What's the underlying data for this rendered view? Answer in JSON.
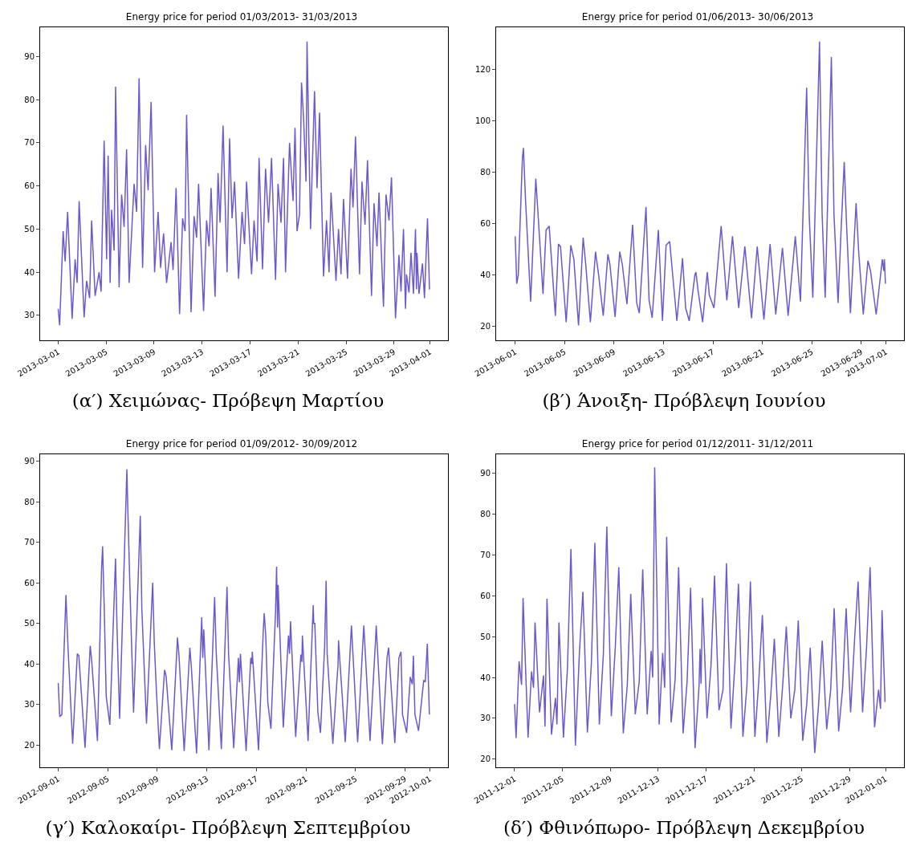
{
  "chart_data": [
    {
      "type": "line",
      "title": "Energy price for period 01/03/2013- 31/03/2013",
      "color": "#6a5acd",
      "x": [
        "2013-03-01T00:00",
        "2013-03-01T03:00",
        "2013-03-01T10:00",
        "2013-03-01T14:00",
        "2013-03-01T19:00",
        "2013-03-02T04:00",
        "2013-03-02T10:00",
        "2013-03-02T14:00",
        "2013-03-02T18:00",
        "2013-03-03T04:00",
        "2013-03-03T09:00",
        "2013-03-03T15:00",
        "2013-03-03T19:00",
        "2013-03-04T02:00",
        "2013-03-04T10:00",
        "2013-03-04T14:00",
        "2013-03-04T20:00",
        "2013-03-05T01:00",
        "2013-03-05T04:00",
        "2013-03-05T08:00",
        "2013-03-05T11:00",
        "2013-03-05T16:00",
        "2013-03-05T19:00",
        "2013-03-06T02:00",
        "2013-03-06T07:00",
        "2013-03-06T12:00",
        "2013-03-06T17:00",
        "2013-03-06T22:00",
        "2013-03-07T08:00",
        "2013-03-07T13:00",
        "2013-03-07T18:00",
        "2013-03-08T01:00",
        "2013-03-08T07:00",
        "2013-03-08T12:00",
        "2013-03-08T18:00",
        "2013-03-09T01:00",
        "2013-03-09T08:00",
        "2013-03-09T13:00",
        "2013-03-09T19:00",
        "2013-03-10T01:00",
        "2013-03-10T10:00",
        "2013-03-10T14:00",
        "2013-03-10T20:00",
        "2013-03-11T03:00",
        "2013-03-11T09:00",
        "2013-03-11T14:00",
        "2013-03-11T17:00",
        "2013-03-12T02:00",
        "2013-03-12T08:00",
        "2013-03-12T13:00",
        "2013-03-12T17:00",
        "2013-03-13T03:00",
        "2013-03-13T09:00",
        "2013-03-13T14:00",
        "2013-03-13T18:00",
        "2013-03-14T02:00",
        "2013-03-14T08:00",
        "2013-03-14T12:00",
        "2013-03-14T18:00",
        "2013-03-15T02:00",
        "2013-03-15T07:00",
        "2013-03-15T12:00",
        "2013-03-15T17:00",
        "2013-03-16T01:00",
        "2013-03-16T08:00",
        "2013-03-16T13:00",
        "2013-03-16T17:00",
        "2013-03-17T03:00",
        "2013-03-17T08:00",
        "2013-03-17T14:00",
        "2013-03-17T18:00",
        "2013-03-18T01:00",
        "2013-03-18T07:00",
        "2013-03-18T13:00",
        "2013-03-18T19:00",
        "2013-03-19T03:00",
        "2013-03-19T08:00",
        "2013-03-19T14:00",
        "2013-03-19T19:00",
        "2013-03-19T23:00",
        "2013-03-20T07:00",
        "2013-03-20T14:00",
        "2013-03-20T18:00",
        "2013-03-20T22:00",
        "2013-03-21T03:00",
        "2013-03-21T07:00",
        "2013-03-21T11:00",
        "2013-03-21T16:00",
        "2013-03-21T18:00",
        "2013-03-22T01:00",
        "2013-03-22T09:00",
        "2013-03-22T14:00",
        "2013-03-22T19:00",
        "2013-03-23T03:00",
        "2013-03-23T09:00",
        "2013-03-23T14:00",
        "2013-03-23T18:00",
        "2013-03-24T04:00",
        "2013-03-24T09:00",
        "2013-03-24T14:00",
        "2013-03-24T19:00",
        "2013-03-25T03:00",
        "2013-03-25T10:00",
        "2013-03-25T14:00",
        "2013-03-25T19:00",
        "2013-03-26T03:00",
        "2013-03-26T08:00",
        "2013-03-26T14:00",
        "2013-03-26T19:00",
        "2013-03-27T03:00",
        "2013-03-27T08:00",
        "2013-03-27T14:00",
        "2013-03-27T18:00",
        "2013-03-28T03:00",
        "2013-03-28T08:00",
        "2013-03-28T14:00",
        "2013-03-28T19:00",
        "2013-03-29T03:00",
        "2013-03-29T10:00",
        "2013-03-29T14:00",
        "2013-03-29T19:00",
        "2013-03-29T23:00",
        "2013-03-30T01:00",
        "2013-03-30T06:00",
        "2013-03-30T10:00",
        "2013-03-30T15:00",
        "2013-03-30T19:00",
        "2013-03-30T21:00",
        "2013-03-30T22:00",
        "2013-03-31T02:00",
        "2013-03-31T09:00",
        "2013-03-31T13:00",
        "2013-03-31T19:00",
        "2013-03-31T23:00"
      ],
      "values": [
        31.5,
        27.7,
        49.5,
        42.5,
        54,
        29.2,
        43,
        37.5,
        56.5,
        29.5,
        38,
        34,
        52,
        34.5,
        40,
        35.5,
        70.5,
        43,
        67,
        37.5,
        54.5,
        45,
        83,
        36.5,
        58,
        50.5,
        68.5,
        37.5,
        60.5,
        54,
        85,
        41,
        69.5,
        59,
        79.5,
        40,
        54,
        41,
        49,
        37.5,
        47,
        40.5,
        59.5,
        30.3,
        52.5,
        49.5,
        76.5,
        30.7,
        53,
        48,
        60.5,
        31,
        52,
        46,
        59.5,
        34.3,
        63,
        51.5,
        74,
        40,
        71,
        52.5,
        61,
        38.5,
        54,
        46.5,
        61,
        39.5,
        52,
        42.5,
        66.5,
        40.7,
        64,
        51.5,
        66.5,
        38.2,
        60.5,
        51.5,
        66.5,
        40,
        70,
        56.5,
        73.5,
        49.5,
        53.5,
        84,
        76,
        61,
        93.5,
        50,
        82,
        59.5,
        77,
        39,
        52,
        40,
        58.5,
        38,
        50,
        39.5,
        57,
        38.5,
        64,
        55,
        71.5,
        39.5,
        61,
        51,
        66,
        34.5,
        56,
        46,
        58.5,
        32,
        58,
        52,
        62,
        29.3,
        44,
        35.5,
        50,
        31.5,
        39.5,
        35.3,
        44.5,
        35,
        50,
        36,
        44.5,
        35,
        42,
        34,
        52.5,
        36
      ],
      "xlim": [
        "2013-02-27T12:00",
        "2013-04-02T12:00"
      ],
      "xticks": [
        "2013-03-01",
        "2013-03-05",
        "2013-03-09",
        "2013-03-13",
        "2013-03-17",
        "2013-03-21",
        "2013-03-25",
        "2013-03-29",
        "2013-04-01"
      ],
      "ylim": [
        24.2,
        96.8
      ],
      "yticks": [
        30,
        40,
        50,
        60,
        70,
        80,
        90
      ],
      "annotations": [
        "(α′) Χειμώνας- Πρόβεψη Μαρτίου"
      ]
    },
    {
      "type": "line",
      "title": "Energy price for period 01/06/2013- 30/06/2013",
      "color": "#6a5acd",
      "x": [
        "2013-06-01T00:00",
        "2013-06-01T03:00",
        "2013-06-01T06:00",
        "2013-06-01T14:00",
        "2013-06-01T16:00",
        "2013-06-01T20:00",
        "2013-06-02T06:00",
        "2013-06-02T16:00",
        "2013-06-02T20:00",
        "2013-06-03T06:00",
        "2013-06-03T12:00",
        "2013-06-03T18:00",
        "2013-06-04T06:00",
        "2013-06-04T12:00",
        "2013-06-04T16:00",
        "2013-06-05T03:00",
        "2013-06-05T12:00",
        "2013-06-05T18:00",
        "2013-06-06T03:00",
        "2013-06-06T12:00",
        "2013-06-06T17:00",
        "2013-06-07T02:00",
        "2013-06-07T12:00",
        "2013-06-07T18:00",
        "2013-06-08T03:00",
        "2013-06-08T12:00",
        "2013-06-08T16:00",
        "2013-06-09T02:00",
        "2013-06-09T11:00",
        "2013-06-09T16:00",
        "2013-06-10T01:00",
        "2013-06-10T12:00",
        "2013-06-10T20:00",
        "2013-06-11T01:00",
        "2013-06-11T14:00",
        "2013-06-11T20:00",
        "2013-06-12T02:00",
        "2013-06-12T14:00",
        "2013-06-12T22:00",
        "2013-06-13T05:00",
        "2013-06-13T12:00",
        "2013-06-13T16:00",
        "2013-06-14T02:00",
        "2013-06-14T13:00",
        "2013-06-14T19:00",
        "2013-06-15T02:00",
        "2013-06-15T13:00",
        "2013-06-15T15:00",
        "2013-06-15T19:00",
        "2013-06-16T04:00",
        "2013-06-16T13:00",
        "2013-06-16T17:00",
        "2013-06-17T02:00",
        "2013-06-17T16:00",
        "2013-06-18T03:00",
        "2013-06-18T14:00",
        "2013-06-19T02:00",
        "2013-06-19T14:00",
        "2013-06-20T03:00",
        "2013-06-20T14:00",
        "2013-06-21T03:00",
        "2013-06-21T15:00",
        "2013-06-22T02:00",
        "2013-06-22T15:00",
        "2013-06-23T02:00",
        "2013-06-23T16:00",
        "2013-06-24T02:00",
        "2013-06-24T14:00",
        "2013-06-24T19:00",
        "2013-06-25T02:00",
        "2013-06-25T15:00",
        "2013-06-25T20:00",
        "2013-06-26T02:00",
        "2013-06-26T14:00",
        "2013-06-26T19:00",
        "2013-06-27T03:00",
        "2013-06-27T09:00",
        "2013-06-27T15:00",
        "2013-06-27T19:00",
        "2013-06-28T03:00",
        "2013-06-28T14:00",
        "2013-06-28T19:00",
        "2013-06-29T04:00",
        "2013-06-29T13:00",
        "2013-06-29T18:00",
        "2013-06-30T05:00",
        "2013-06-30T17:00",
        "2013-06-30T20:00",
        "2013-06-30T21:00",
        "2013-06-30T23:00"
      ],
      "values": [
        55,
        36.5,
        40,
        85.5,
        89.5,
        69.5,
        29.5,
        77.5,
        65,
        32.5,
        57.5,
        59,
        24,
        52,
        51,
        21.5,
        51.5,
        46,
        20.2,
        54.5,
        44,
        21.5,
        49,
        40,
        24,
        48,
        44,
        23.5,
        49,
        44,
        28.5,
        59.5,
        29,
        25,
        66.5,
        30,
        23.2,
        57.5,
        22,
        51.5,
        53,
        44,
        22,
        46.5,
        27,
        22,
        40,
        41,
        34,
        21.5,
        41,
        32,
        27,
        59,
        30,
        55,
        27,
        51,
        23,
        51,
        22.5,
        52,
        24.5,
        50.5,
        24,
        55,
        29.5,
        113,
        63,
        31,
        131,
        64,
        31,
        125,
        64,
        29,
        58,
        84,
        62,
        25,
        68,
        49,
        24.5,
        45.5,
        41.5,
        24.5,
        46,
        41.5,
        46,
        36.5
      ],
      "xlim": [
        "2013-05-30T11:00",
        "2013-07-02T11:00"
      ],
      "xticks": [
        "2013-06-01",
        "2013-06-05",
        "2013-06-09",
        "2013-06-13",
        "2013-06-17",
        "2013-06-21",
        "2013-06-25",
        "2013-06-29",
        "2013-07-01"
      ],
      "ylim": [
        14.4,
        136.6
      ],
      "yticks": [
        20,
        40,
        60,
        80,
        100,
        120
      ],
      "annotations": [
        "(β′) Άνοιξη- Πρόβλεψη Ιουνίου"
      ]
    },
    {
      "type": "line",
      "title": "Energy price for period 01/09/2012- 30/09/2012",
      "color": "#6a5acd",
      "x": [
        "2012-09-01T00:00",
        "2012-09-01T03:00",
        "2012-09-01T07:00",
        "2012-09-01T15:00",
        "2012-09-01T19:00",
        "2012-09-02T04:00",
        "2012-09-02T13:00",
        "2012-09-02T16:00",
        "2012-09-03T04:00",
        "2012-09-03T14:00",
        "2012-09-03T17:00",
        "2012-09-04T04:00",
        "2012-09-04T12:00",
        "2012-09-04T14:00",
        "2012-09-04T17:00",
        "2012-09-04T21:00",
        "2012-09-05T04:00",
        "2012-09-05T15:00",
        "2012-09-05T18:00",
        "2012-09-05T23:00",
        "2012-09-06T13:00",
        "2012-09-06T15:00",
        "2012-09-06T19:00",
        "2012-09-07T02:00",
        "2012-09-07T15:00",
        "2012-09-07T18:00",
        "2012-09-08T03:00",
        "2012-09-08T15:00",
        "2012-09-08T18:00",
        "2012-09-08T22:00",
        "2012-09-09T04:00",
        "2012-09-09T14:00",
        "2012-09-09T17:00",
        "2012-09-10T04:00",
        "2012-09-10T15:00",
        "2012-09-10T18:00",
        "2012-09-11T04:00",
        "2012-09-11T15:00",
        "2012-09-11T18:00",
        "2012-09-12T04:00",
        "2012-09-12T14:00",
        "2012-09-12T16:00",
        "2012-09-12T18:00",
        "2012-09-13T04:00",
        "2012-09-13T15:00",
        "2012-09-13T18:00",
        "2012-09-14T04:00",
        "2012-09-14T15:00",
        "2012-09-14T18:00",
        "2012-09-15T04:00",
        "2012-09-15T13:00",
        "2012-09-15T15:00",
        "2012-09-15T17:00",
        "2012-09-16T04:00",
        "2012-09-16T13:00",
        "2012-09-16T15:00",
        "2012-09-16T16:00",
        "2012-09-17T04:00",
        "2012-09-17T13:00",
        "2012-09-17T15:00",
        "2012-09-17T18:00",
        "2012-09-17T22:00",
        "2012-09-18T04:00",
        "2012-09-18T13:00",
        "2012-09-18T15:00",
        "2012-09-18T17:00",
        "2012-09-18T18:00",
        "2012-09-19T04:00",
        "2012-09-19T14:00",
        "2012-09-19T16:00",
        "2012-09-19T18:00",
        "2012-09-20T04:00",
        "2012-09-20T14:00",
        "2012-09-20T16:00",
        "2012-09-20T17:00",
        "2012-09-21T04:00",
        "2012-09-21T14:00",
        "2012-09-21T15:00",
        "2012-09-21T17:00",
        "2012-09-21T23:00",
        "2012-09-22T04:00",
        "2012-09-22T12:00",
        "2012-09-22T15:00",
        "2012-09-22T17:00",
        "2012-09-23T04:00",
        "2012-09-23T13:00",
        "2012-09-23T14:00",
        "2012-09-23T15:00",
        "2012-09-24T04:00",
        "2012-09-24T13:00",
        "2012-09-24T16:00",
        "2012-09-25T04:00",
        "2012-09-25T13:00",
        "2012-09-25T16:00",
        "2012-09-26T04:00",
        "2012-09-26T13:00",
        "2012-09-26T15:00",
        "2012-09-26T16:00",
        "2012-09-27T04:00",
        "2012-09-27T13:00",
        "2012-09-27T16:00",
        "2012-09-28T04:00",
        "2012-09-28T12:00",
        "2012-09-28T16:00",
        "2012-09-28T19:00",
        "2012-09-29T03:00",
        "2012-09-29T10:00",
        "2012-09-29T14:00",
        "2012-09-29T16:00",
        "2012-09-29T19:00",
        "2012-09-30T02:00",
        "2012-09-30T12:00",
        "2012-09-30T15:00",
        "2012-09-30T19:00",
        "2012-09-30T23:00"
      ],
      "values": [
        35.3,
        27,
        27.5,
        57,
        44,
        20.3,
        42.5,
        42,
        19.3,
        44.5,
        40.5,
        21,
        63.5,
        69,
        54.5,
        32,
        25,
        66,
        48.5,
        26.5,
        88,
        77.5,
        58.5,
        28,
        76.5,
        53.5,
        25.3,
        60,
        45.5,
        34,
        19,
        38.5,
        37,
        18.7,
        46.5,
        42,
        18.5,
        44,
        39,
        17.9,
        51.5,
        41.5,
        48.5,
        18.7,
        56.5,
        43,
        19,
        59,
        42.5,
        19.2,
        41.5,
        35.5,
        42.5,
        18.5,
        41.5,
        40,
        43,
        18.7,
        47.5,
        52.5,
        47,
        30.5,
        24,
        53,
        64,
        49,
        59.5,
        24.3,
        47,
        42.5,
        50.5,
        22,
        42.3,
        40.5,
        47,
        21,
        54.5,
        50,
        50,
        28,
        23,
        44,
        60.5,
        42.5,
        20.3,
        38,
        39.5,
        45.8,
        20.7,
        42,
        49.5,
        20.7,
        42.5,
        49.5,
        21,
        42,
        46.5,
        49.5,
        20.2,
        41.5,
        44,
        20.5,
        41.5,
        43,
        27.5,
        23,
        36.8,
        35,
        42,
        27.5,
        23.5,
        36,
        35.5,
        45,
        27.5
      ],
      "xlim": [
        "2012-08-30T13:00",
        "2012-10-02T11:00"
      ],
      "xticks": [
        "2012-09-01",
        "2012-09-05",
        "2012-09-09",
        "2012-09-13",
        "2012-09-17",
        "2012-09-21",
        "2012-09-25",
        "2012-09-29",
        "2012-10-01"
      ],
      "ylim": [
        14.5,
        91.7
      ],
      "yticks": [
        20,
        30,
        40,
        50,
        60,
        70,
        80,
        90
      ],
      "annotations": [
        "(γ′) Καλοκαίρι- Πρόβλεψη Σεπτεμβρίου"
      ]
    },
    {
      "type": "line",
      "title": "Energy price for period 01/12/2011- 31/12/2011",
      "color": "#6a5acd",
      "x": [
        "2011-12-01T00:00",
        "2011-12-01T03:00",
        "2011-12-01T09:00",
        "2011-12-01T14:00",
        "2011-12-01T17:00",
        "2011-12-02T03:00",
        "2011-12-02T10:00",
        "2011-12-02T14:00",
        "2011-12-02T17:00",
        "2011-12-03T02:00",
        "2011-12-03T10:00",
        "2011-12-03T13:00",
        "2011-12-03T17:00",
        "2011-12-04T02:00",
        "2011-12-04T10:00",
        "2011-12-04T13:00",
        "2011-12-04T17:00",
        "2011-12-05T02:00",
        "2011-12-05T10:00",
        "2011-12-05T17:00",
        "2011-12-06T02:00",
        "2011-12-06T10:00",
        "2011-12-06T17:00",
        "2011-12-07T02:00",
        "2011-12-07T10:00",
        "2011-12-07T17:00",
        "2011-12-08T02:00",
        "2011-12-08T10:00",
        "2011-12-08T17:00",
        "2011-12-09T02:00",
        "2011-12-09T10:00",
        "2011-12-09T17:00",
        "2011-12-10T02:00",
        "2011-12-10T10:00",
        "2011-12-10T17:00",
        "2011-12-11T02:00",
        "2011-12-11T10:00",
        "2011-12-11T17:00",
        "2011-12-12T02:00",
        "2011-12-12T10:00",
        "2011-12-12T13:00",
        "2011-12-12T17:00",
        "2011-12-13T02:00",
        "2011-12-13T09:00",
        "2011-12-13T13:00",
        "2011-12-13T17:00",
        "2011-12-14T02:00",
        "2011-12-14T10:00",
        "2011-12-14T17:00",
        "2011-12-15T02:00",
        "2011-12-15T10:00",
        "2011-12-15T17:00",
        "2011-12-16T02:00",
        "2011-12-16T10:00",
        "2011-12-16T12:00",
        "2011-12-16T14:00",
        "2011-12-16T17:00",
        "2011-12-17T02:00",
        "2011-12-17T10:00",
        "2011-12-17T17:00",
        "2011-12-18T02:00",
        "2011-12-18T10:00",
        "2011-12-18T17:00",
        "2011-12-19T02:00",
        "2011-12-19T10:00",
        "2011-12-19T17:00",
        "2011-12-20T02:00",
        "2011-12-20T10:00",
        "2011-12-20T17:00",
        "2011-12-21T02:00",
        "2011-12-21T10:00",
        "2011-12-21T17:00",
        "2011-12-22T02:00",
        "2011-12-22T10:00",
        "2011-12-22T17:00",
        "2011-12-23T02:00",
        "2011-12-23T10:00",
        "2011-12-23T17:00",
        "2011-12-24T02:00",
        "2011-12-24T10:00",
        "2011-12-24T17:00",
        "2011-12-25T02:00",
        "2011-12-25T10:00",
        "2011-12-25T17:00",
        "2011-12-26T02:00",
        "2011-12-26T10:00",
        "2011-12-26T17:00",
        "2011-12-27T02:00",
        "2011-12-27T10:00",
        "2011-12-27T17:00",
        "2011-12-28T02:00",
        "2011-12-28T10:00",
        "2011-12-28T17:00",
        "2011-12-29T02:00",
        "2011-12-29T10:00",
        "2011-12-29T17:00",
        "2011-12-30T02:00",
        "2011-12-30T10:00",
        "2011-12-30T17:00",
        "2011-12-31T02:00",
        "2011-12-31T10:00",
        "2011-12-31T14:00",
        "2011-12-31T17:00",
        "2011-12-31T23:00"
      ],
      "values": [
        33.5,
        25.2,
        44,
        38.2,
        59.5,
        25.3,
        41.5,
        37.5,
        53.5,
        31.5,
        40.5,
        28,
        59.3,
        26,
        35,
        28.5,
        53.5,
        25.3,
        42.3,
        71.5,
        23.3,
        46,
        61,
        26.5,
        43.5,
        73,
        28.5,
        45.5,
        77,
        30.5,
        47.5,
        67,
        26.3,
        38,
        60.5,
        31,
        39,
        66.5,
        31,
        46.5,
        40,
        91.5,
        28.5,
        46,
        37.5,
        74.5,
        29,
        39.5,
        67,
        26.3,
        39,
        62,
        22.7,
        38,
        47,
        38.5,
        59.5,
        30,
        43,
        65,
        32,
        37,
        68,
        27.5,
        43.5,
        63,
        25.5,
        38,
        63.5,
        25.5,
        39.5,
        55.3,
        24,
        36,
        49.5,
        25.5,
        38.5,
        52.5,
        30,
        37,
        54,
        24.5,
        33.5,
        47.3,
        21.5,
        33.8,
        49,
        27.3,
        37,
        57,
        26.8,
        37.5,
        57,
        31.5,
        49.5,
        63.5,
        31.5,
        47.5,
        67,
        27.8,
        37,
        32.3,
        56.5,
        34
      ],
      "xlim": [
        "2011-11-29T11:00",
        "2012-01-02T13:00"
      ],
      "xticks": [
        "2011-12-01",
        "2011-12-05",
        "2011-12-09",
        "2011-12-13",
        "2011-12-17",
        "2011-12-21",
        "2011-12-25",
        "2011-12-29",
        "2012-01-01"
      ],
      "ylim": [
        18,
        94.7
      ],
      "yticks": [
        20,
        30,
        40,
        50,
        60,
        70,
        80,
        90
      ],
      "annotations": [
        "(δ′) Φθινόπωρο- Πρόβλεψη Δεκεμβρίου"
      ]
    }
  ]
}
